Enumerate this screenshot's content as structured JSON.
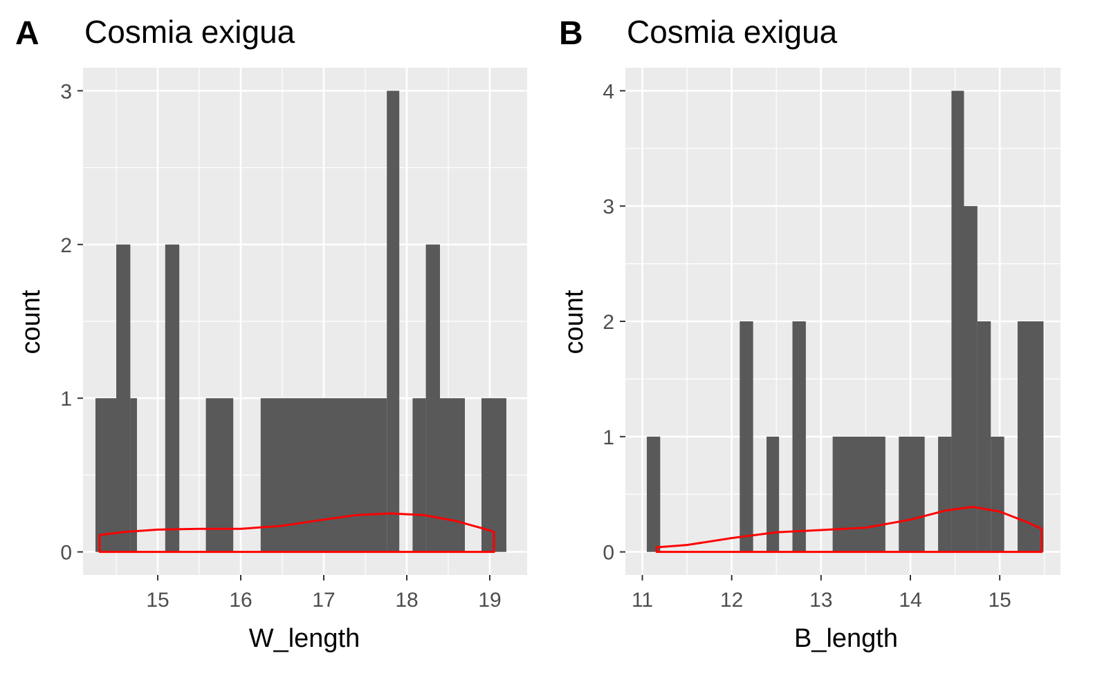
{
  "chart_data": [
    {
      "type": "bar",
      "panel_tag": "A",
      "title": "Cosmia exigua",
      "xlabel": "W_length",
      "ylabel": "count",
      "xlim": [
        14.1,
        19.45
      ],
      "ylim": [
        -0.15,
        3.15
      ],
      "xticks": [
        15,
        16,
        17,
        18,
        19
      ],
      "yticks": [
        0,
        1,
        2,
        3
      ],
      "grid": true,
      "bar_color": "#595959",
      "bars": [
        {
          "x0": 14.25,
          "x1": 14.5,
          "count": 1
        },
        {
          "x0": 14.5,
          "x1": 14.67,
          "count": 2
        },
        {
          "x0": 14.67,
          "x1": 14.75,
          "count": 1
        },
        {
          "x0": 15.09,
          "x1": 15.26,
          "count": 2
        },
        {
          "x0": 15.58,
          "x1": 15.91,
          "count": 1
        },
        {
          "x0": 16.24,
          "x1": 17.76,
          "count": 1
        },
        {
          "x0": 17.76,
          "x1": 17.91,
          "count": 3
        },
        {
          "x0": 18.07,
          "x1": 18.23,
          "count": 1
        },
        {
          "x0": 18.23,
          "x1": 18.4,
          "count": 2
        },
        {
          "x0": 18.4,
          "x1": 18.7,
          "count": 1
        },
        {
          "x0": 18.9,
          "x1": 19.2,
          "count": 1
        }
      ],
      "density_color": "#ff0000",
      "density": {
        "x": [
          14.3,
          14.6,
          15.0,
          15.5,
          16.0,
          16.5,
          17.0,
          17.4,
          17.8,
          18.2,
          18.6,
          19.0,
          19.05
        ],
        "y": [
          0.11,
          0.13,
          0.145,
          0.15,
          0.15,
          0.17,
          0.21,
          0.24,
          0.25,
          0.24,
          0.2,
          0.14,
          0.13
        ]
      }
    },
    {
      "type": "bar",
      "panel_tag": "B",
      "title": "Cosmia exigua",
      "xlabel": "B_length",
      "ylabel": "count",
      "xlim": [
        10.81,
        15.68
      ],
      "ylim": [
        -0.2,
        4.2
      ],
      "xticks": [
        11,
        12,
        13,
        14,
        15
      ],
      "yticks": [
        0,
        1,
        2,
        3,
        4
      ],
      "grid": true,
      "bar_color": "#595959",
      "bars": [
        {
          "x0": 11.05,
          "x1": 11.2,
          "count": 1
        },
        {
          "x0": 12.09,
          "x1": 12.24,
          "count": 2
        },
        {
          "x0": 12.39,
          "x1": 12.53,
          "count": 1
        },
        {
          "x0": 12.68,
          "x1": 12.83,
          "count": 2
        },
        {
          "x0": 13.13,
          "x1": 13.72,
          "count": 1
        },
        {
          "x0": 13.87,
          "x1": 14.16,
          "count": 1
        },
        {
          "x0": 14.31,
          "x1": 14.46,
          "count": 1
        },
        {
          "x0": 14.46,
          "x1": 14.6,
          "count": 4
        },
        {
          "x0": 14.6,
          "x1": 14.75,
          "count": 3
        },
        {
          "x0": 14.75,
          "x1": 14.9,
          "count": 2
        },
        {
          "x0": 14.9,
          "x1": 15.05,
          "count": 1
        },
        {
          "x0": 15.2,
          "x1": 15.49,
          "count": 2
        }
      ],
      "density_color": "#ff0000",
      "density": {
        "x": [
          11.16,
          11.5,
          12.0,
          12.5,
          13.0,
          13.5,
          14.0,
          14.4,
          14.7,
          15.0,
          15.3,
          15.47
        ],
        "y": [
          0.04,
          0.06,
          0.12,
          0.17,
          0.19,
          0.21,
          0.28,
          0.36,
          0.39,
          0.35,
          0.26,
          0.2
        ]
      }
    }
  ]
}
